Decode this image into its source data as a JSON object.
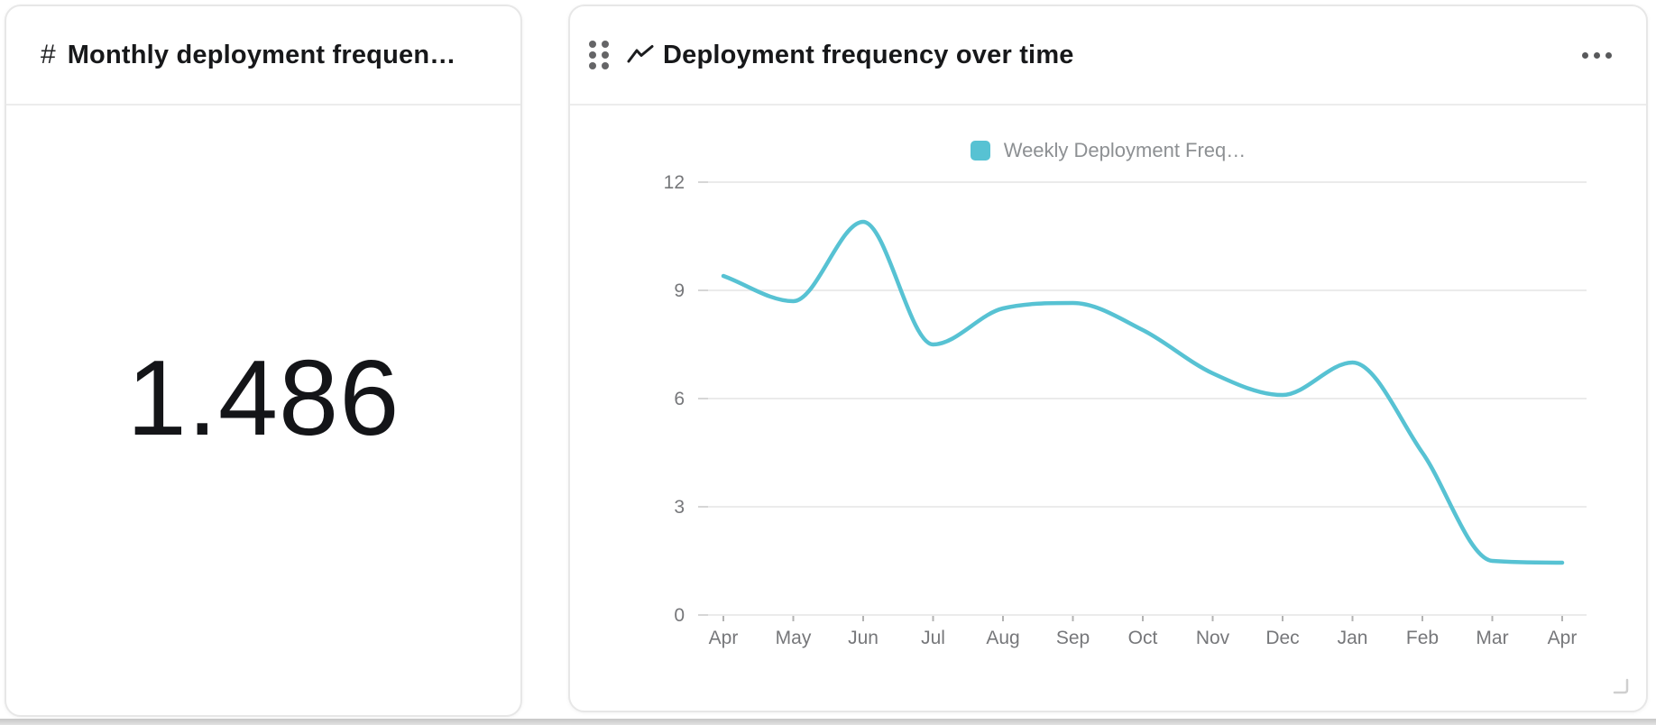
{
  "left_widget": {
    "icon": "#",
    "title": "Monthly deployment frequen…",
    "value": "1.486"
  },
  "right_widget": {
    "title": "Deployment frequency over time",
    "menu_icon": "ellipsis-horizontal"
  },
  "chart_data": {
    "type": "line",
    "title": "Deployment frequency over time",
    "categories": [
      "Apr",
      "May",
      "Jun",
      "Jul",
      "Aug",
      "Sep",
      "Oct",
      "Nov",
      "Dec",
      "Jan",
      "Feb",
      "Mar",
      "Apr"
    ],
    "series": [
      {
        "name": "Weekly Deployment Freq…",
        "values": [
          9.4,
          8.7,
          10.9,
          7.5,
          8.5,
          8.65,
          7.9,
          6.7,
          6.1,
          7.0,
          4.5,
          1.5,
          1.45
        ]
      }
    ],
    "xlabel": "",
    "ylabel": "",
    "ylim": [
      0,
      12
    ],
    "yticks": [
      0,
      3,
      6,
      9,
      12
    ],
    "grid": true,
    "legend_position": "top",
    "line_color": "#57c2d3",
    "interpolation": "monotone"
  },
  "colors": {
    "accent": "#57c2d3",
    "gridline": "#ebebeb",
    "tick_stub": "#d6d6d6",
    "axis_text": "#76777a",
    "legend_text": "#8d9093",
    "title_text": "#17181a"
  }
}
